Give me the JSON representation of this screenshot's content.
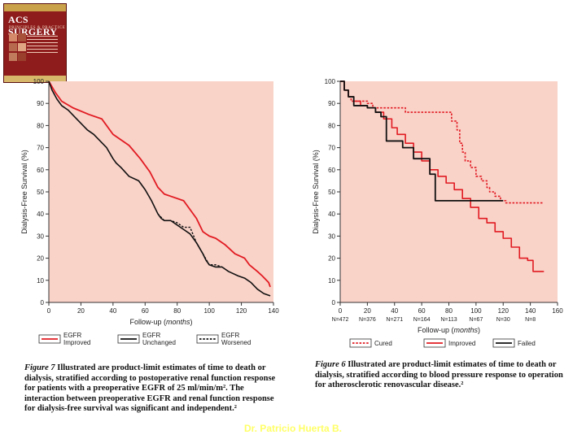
{
  "book": {
    "title": "ACS SURGERY",
    "subtitle": "PRINCIPLES & PRACTICE"
  },
  "footer": "Dr. Patricio Huerta B.",
  "colors": {
    "plot_bg": "#f9d2c8",
    "axis_bg": "#fbe6de",
    "red": "#e11b22",
    "black": "#111111"
  },
  "chart_data": [
    {
      "type": "line",
      "xlabel": "Follow-up",
      "xlabel_unit": "months",
      "ylabel": "Dialysis-Free Survival (%)",
      "xlim": [
        0,
        140
      ],
      "ylim": [
        0,
        100
      ],
      "xticks": [
        0,
        20,
        40,
        60,
        80,
        100,
        120,
        140
      ],
      "yticks": [
        0,
        10,
        20,
        30,
        40,
        50,
        60,
        70,
        80,
        90,
        100
      ],
      "legend": [
        {
          "line1": "EGFR",
          "line2": "Improved",
          "color": "#e11b22",
          "dash": false
        },
        {
          "line1": "EGFR",
          "line2": "Unchanged",
          "color": "#111111",
          "dash": false
        },
        {
          "line1": "EGFR",
          "line2": "Worsened",
          "color": "#111111",
          "dash": true
        }
      ],
      "series": [
        {
          "color": "#e11b22",
          "dash": false,
          "width": 1.8,
          "x": [
            0,
            4,
            8,
            15,
            25,
            33,
            40,
            50,
            57,
            63,
            68,
            72,
            76,
            84,
            88,
            92,
            96,
            100,
            104,
            110,
            116,
            122,
            125,
            130,
            133,
            137,
            138
          ],
          "y": [
            100,
            95,
            91,
            88,
            85,
            83,
            76,
            71,
            65,
            59,
            52,
            49,
            48,
            46,
            42,
            38,
            32,
            30,
            29,
            26,
            22,
            20,
            17,
            14,
            12,
            9,
            7
          ]
        },
        {
          "color": "#111111",
          "dash": false,
          "width": 1.6,
          "x": [
            0,
            2,
            5,
            8,
            12,
            16,
            20,
            24,
            28,
            32,
            36,
            40,
            42,
            45,
            50,
            56,
            60,
            64,
            66,
            68,
            70,
            72,
            76,
            80,
            84,
            88,
            92,
            96,
            98,
            100,
            104,
            108,
            112,
            118,
            122,
            126,
            130,
            134,
            138
          ],
          "y": [
            100,
            96,
            92,
            89,
            87,
            84,
            81,
            78,
            76,
            73,
            70,
            65,
            63,
            61,
            57,
            55,
            51,
            46,
            43,
            40,
            38,
            37,
            37,
            35,
            33,
            31,
            27,
            22,
            19,
            17,
            16,
            16,
            14,
            12,
            11,
            9,
            6,
            4,
            3
          ]
        },
        {
          "color": "#111111",
          "dash": true,
          "width": 1.4,
          "x": [
            68,
            72,
            76,
            80,
            84,
            88,
            92,
            96,
            100,
            104,
            108
          ],
          "y": [
            40,
            37,
            37,
            36,
            34,
            34,
            27,
            22,
            17,
            17,
            16
          ]
        }
      ],
      "caption": {
        "fig_label": "Figure 7",
        "text": "Illustrated are product-limit estimates of time to death or dialysis, stratified according to postoperative renal function response for patients with a preoperative EGFR of 25 ml/min/m². The interaction between preoperative EGFR and renal function response for dialysis-free survival was significant and independent.²"
      }
    },
    {
      "type": "line",
      "xlabel": "Follow-up",
      "xlabel_unit": "months",
      "ylabel": "Dialysis-Free Survival (%)",
      "xlim": [
        0,
        160
      ],
      "ylim": [
        0,
        100
      ],
      "xticks": [
        0,
        20,
        40,
        60,
        80,
        100,
        120,
        140,
        160
      ],
      "yticks": [
        0,
        10,
        20,
        30,
        40,
        50,
        60,
        70,
        80,
        90,
        100
      ],
      "at_risk": [
        {
          "x": 0,
          "label": "N=472"
        },
        {
          "x": 20,
          "label": "N=376"
        },
        {
          "x": 40,
          "label": "N=271"
        },
        {
          "x": 60,
          "label": "N=164"
        },
        {
          "x": 80,
          "label": "N=113"
        },
        {
          "x": 100,
          "label": "N=67"
        },
        {
          "x": 120,
          "label": "N=30"
        },
        {
          "x": 140,
          "label": "N=8"
        }
      ],
      "legend": [
        {
          "label": "Cured",
          "color": "#e11b22",
          "dash": true
        },
        {
          "label": "Improved",
          "color": "#e11b22",
          "dash": false
        },
        {
          "label": "Failed",
          "color": "#111111",
          "dash": false
        }
      ],
      "series": [
        {
          "color": "#e11b22",
          "dash": false,
          "width": 1.6,
          "step": true,
          "x": [
            0,
            3,
            6,
            10,
            15,
            20,
            26,
            32,
            38,
            42,
            48,
            54,
            60,
            66,
            72,
            78,
            84,
            90,
            96,
            102,
            108,
            114,
            120,
            126,
            132,
            138,
            142,
            150
          ],
          "y": [
            100,
            96,
            93,
            91,
            89,
            88,
            86,
            83,
            79,
            76,
            72,
            68,
            64,
            60,
            57,
            54,
            51,
            47,
            43,
            38,
            36,
            32,
            29,
            25,
            20,
            19,
            14,
            14
          ]
        },
        {
          "color": "#e11b22",
          "dash": true,
          "width": 1.6,
          "step": true,
          "x": [
            0,
            3,
            6,
            8,
            20,
            24,
            48,
            78,
            82,
            86,
            88,
            90,
            92,
            96,
            100,
            104,
            108,
            110,
            114,
            118,
            122,
            150
          ],
          "y": [
            100,
            96,
            93,
            91,
            90,
            88,
            86,
            86,
            82,
            78,
            72,
            68,
            64,
            61,
            57,
            55,
            52,
            50,
            48,
            46,
            45,
            45
          ]
        },
        {
          "color": "#111111",
          "dash": false,
          "width": 1.8,
          "step": true,
          "x": [
            0,
            3,
            6,
            10,
            20,
            26,
            30,
            34,
            40,
            46,
            54,
            60,
            66,
            70,
            120
          ],
          "y": [
            100,
            96,
            93,
            89,
            88,
            86,
            84,
            73,
            73,
            70,
            65,
            65,
            58,
            46,
            46
          ]
        }
      ],
      "caption": {
        "fig_label": "Figure 6",
        "text": "Illustrated are product-limit estimates of time to death or dialysis, stratified according to blood pressure response to operation for atherosclerotic renovascular disease.²"
      }
    }
  ]
}
